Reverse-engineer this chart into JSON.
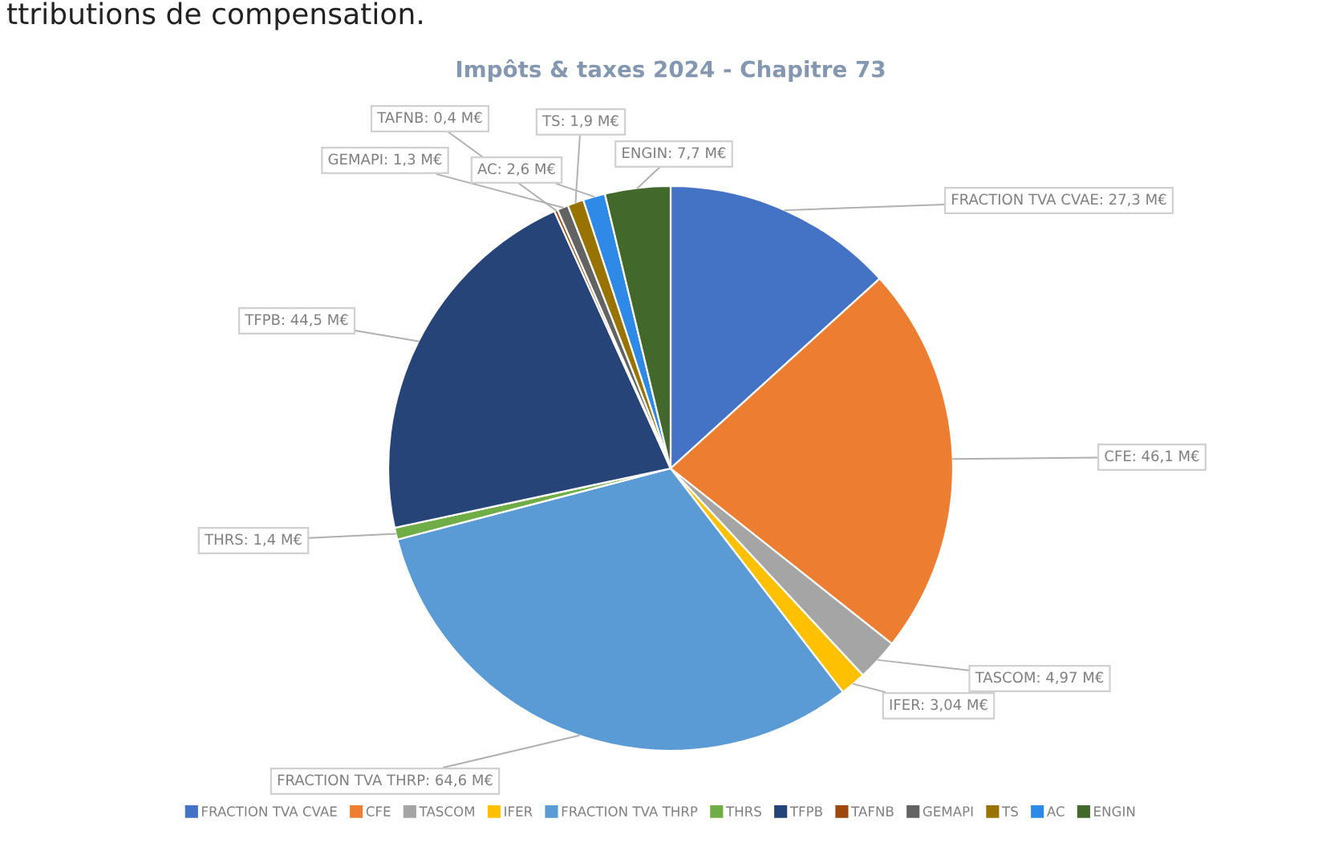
{
  "chart_data": {
    "type": "pie",
    "title": "Impôts & taxes 2024 - Chapitre 73",
    "annotations": [
      "ttributions de compensation."
    ],
    "categories": [
      "FRACTION TVA CVAE",
      "CFE",
      "TASCOM",
      "IFER",
      "FRACTION TVA THRP",
      "THRS",
      "TFPB",
      "TAFNB",
      "GEMAPI",
      "TS",
      "AC",
      "ENGIN"
    ],
    "values": [
      27.3,
      46.1,
      4.97,
      3.04,
      64.6,
      1.4,
      44.5,
      0.4,
      1.3,
      1.9,
      2.6,
      7.7
    ],
    "colors": [
      "#4472c4",
      "#ed7d31",
      "#a5a5a5",
      "#ffc000",
      "#5b9bd5",
      "#70ad47",
      "#264478",
      "#9e480e",
      "#636363",
      "#997300",
      "#2e8ae6",
      "#43682b"
    ],
    "value_labels": [
      "FRACTION TVA CVAE: 27,3 M€",
      "CFE: 46,1 M€",
      "TASCOM: 4,97 M€",
      "IFER: 3,04 M€",
      "FRACTION TVA THRP: 64,6 M€",
      "THRS: 1,4 M€",
      "TFPB: 44,5 M€",
      "TAFNB: 0,4 M€",
      "GEMAPI: 1,3 M€",
      "TS: 1,9 M€",
      "AC: 2,6 M€",
      "ENGIN: 7,7 M€"
    ],
    "legend": "bottom"
  }
}
